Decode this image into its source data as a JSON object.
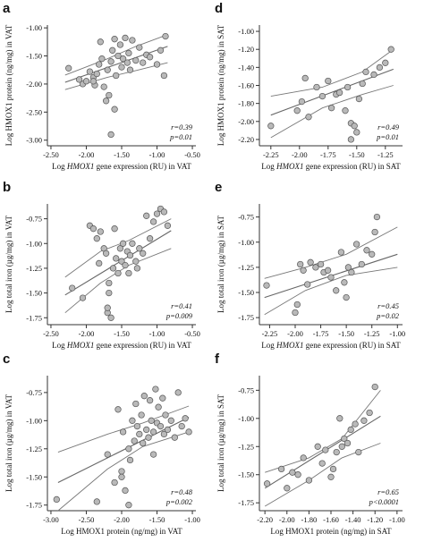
{
  "colors": {
    "point_fill": "#b9b9b9",
    "point_stroke": "#555555",
    "fit_line": "#666666",
    "ci_line": "#777777",
    "axis": "#333333",
    "text": "#111111"
  },
  "chart_data": [
    {
      "panel_letter": "a",
      "type": "scatter",
      "xlabel_pre": "Log ",
      "xlabel_em": "HMOX1",
      "xlabel_post": " gene expression (RU) in VAT",
      "ylabel": "Log HMOX1 protein (ng/mg) in VAT",
      "x_ticks": [
        -2.5,
        -2.0,
        -1.5,
        -1.0,
        -0.5
      ],
      "x_tick_labels": [
        "-2.50",
        "-2.00",
        "-1.50",
        "-1.00",
        "-0.50"
      ],
      "y_ticks": [
        -3.0,
        -2.5,
        -2.0,
        -1.5,
        -1.0
      ],
      "y_tick_labels": [
        "-3.00",
        "-2.50",
        "-2.00",
        "-1.50",
        "-1.00"
      ],
      "xlim": [
        -2.55,
        -0.45
      ],
      "ylim": [
        -3.1,
        -0.95
      ],
      "stat_r": "r=0.39",
      "stat_p": "p=0.01",
      "fit": {
        "x": [
          -2.3,
          -0.85
        ],
        "y": [
          -1.97,
          -1.33
        ]
      },
      "ci_upper": {
        "x": [
          -2.3,
          -1.7,
          -1.3,
          -0.85
        ],
        "y": [
          -1.84,
          -1.55,
          -1.33,
          -1.12
        ]
      },
      "ci_lower": {
        "x": [
          -2.3,
          -1.7,
          -1.3,
          -0.85
        ],
        "y": [
          -2.1,
          -1.88,
          -1.76,
          -1.62
        ]
      },
      "points": {
        "x": [
          -2.25,
          -2.1,
          -2.05,
          -2.0,
          -1.95,
          -1.9,
          -1.88,
          -1.85,
          -1.82,
          -1.8,
          -1.78,
          -1.75,
          -1.7,
          -1.68,
          -1.65,
          -1.63,
          -1.6,
          -1.6,
          -1.58,
          -1.55,
          -1.52,
          -1.5,
          -1.48,
          -1.45,
          -1.42,
          -1.4,
          -1.38,
          -1.35,
          -1.3,
          -1.25,
          -1.2,
          -1.15,
          -1.1,
          -1.0,
          -0.95,
          -0.9,
          -0.88,
          -1.65,
          -1.72,
          -1.9
        ],
        "y": [
          -1.72,
          -1.92,
          -2.0,
          -1.95,
          -1.78,
          -1.88,
          -2.02,
          -1.82,
          -1.65,
          -1.25,
          -1.55,
          -2.05,
          -1.75,
          -2.2,
          -1.6,
          -1.4,
          -1.2,
          -2.45,
          -1.85,
          -1.5,
          -1.3,
          -1.7,
          -1.55,
          -1.18,
          -1.62,
          -1.45,
          -1.75,
          -1.22,
          -1.58,
          -1.35,
          -1.62,
          -1.48,
          -1.52,
          -1.65,
          -1.4,
          -1.85,
          -1.15,
          -2.9,
          -2.3,
          -1.95
        ]
      }
    },
    {
      "panel_letter": "b",
      "type": "scatter",
      "xlabel_pre": "Log ",
      "xlabel_em": "HMOX1",
      "xlabel_post": " gene expression (RU) in VAT",
      "ylabel": "Log total iron (µg/mg) in VAT",
      "x_ticks": [
        -2.5,
        -2.0,
        -1.5,
        -1.0,
        -0.5
      ],
      "x_tick_labels": [
        "-2.50",
        "-2.00",
        "-1.50",
        "-1.00",
        "-0.50"
      ],
      "y_ticks": [
        -1.75,
        -1.5,
        -1.25,
        -1.0,
        -0.75
      ],
      "y_tick_labels": [
        "-1.75",
        "-1.50",
        "-1.25",
        "-1.00",
        "-0.75"
      ],
      "xlim": [
        -2.55,
        -0.45
      ],
      "ylim": [
        -1.82,
        -0.6
      ],
      "stat_r": "r=0.41",
      "stat_p": "p=0.009",
      "fit": {
        "x": [
          -2.3,
          -0.8
        ],
        "y": [
          -1.52,
          -0.87
        ]
      },
      "ci_upper": {
        "x": [
          -2.3,
          -1.8,
          -1.4,
          -0.8
        ],
        "y": [
          -1.34,
          -1.08,
          -0.97,
          -0.75
        ]
      },
      "ci_lower": {
        "x": [
          -2.3,
          -1.8,
          -1.4,
          -0.8
        ],
        "y": [
          -1.7,
          -1.4,
          -1.22,
          -1.05
        ]
      },
      "points": {
        "x": [
          -2.2,
          -2.05,
          -1.95,
          -1.9,
          -1.85,
          -1.82,
          -1.8,
          -1.75,
          -1.72,
          -1.7,
          -1.68,
          -1.65,
          -1.62,
          -1.6,
          -1.58,
          -1.55,
          -1.52,
          -1.5,
          -1.48,
          -1.45,
          -1.42,
          -1.4,
          -1.38,
          -1.35,
          -1.3,
          -1.28,
          -1.25,
          -1.2,
          -1.15,
          -1.1,
          -1.05,
          -1.0,
          -0.95,
          -0.9,
          -0.85,
          -1.7,
          -1.68
        ],
        "y": [
          -1.45,
          -1.55,
          -0.82,
          -0.85,
          -0.95,
          -1.2,
          -0.88,
          -1.05,
          -1.1,
          -1.7,
          -1.4,
          -1.75,
          -1.25,
          -0.85,
          -1.15,
          -1.3,
          -1.05,
          -1.18,
          -1.0,
          -1.22,
          -1.08,
          -1.3,
          -1.12,
          -1.0,
          -1.18,
          -1.25,
          -1.05,
          -1.1,
          -0.72,
          -0.95,
          -0.78,
          -0.7,
          -0.65,
          -0.68,
          -0.82,
          -1.65,
          -1.5
        ]
      }
    },
    {
      "panel_letter": "c",
      "type": "scatter",
      "xlabel_pre": "Log HMOX1 protein (ng/mg) in VAT",
      "xlabel_em": "",
      "xlabel_post": "",
      "ylabel": "Log total iron (µg/mg) in VAT",
      "x_ticks": [
        -3.0,
        -2.5,
        -2.0,
        -1.5,
        -1.0
      ],
      "x_tick_labels": [
        "-3.00",
        "-2.50",
        "-2.00",
        "-1.50",
        "-1.00"
      ],
      "y_ticks": [
        -1.75,
        -1.5,
        -1.25,
        -1.0,
        -0.75
      ],
      "y_tick_labels": [
        "-1.75",
        "-1.50",
        "-1.25",
        "-1.00",
        "-0.75"
      ],
      "xlim": [
        -3.05,
        -0.95
      ],
      "ylim": [
        -1.8,
        -0.6
      ],
      "stat_r": "r=0.48",
      "stat_p": "p=0.002",
      "fit": {
        "x": [
          -2.9,
          -1.05
        ],
        "y": [
          -1.55,
          -0.97
        ]
      },
      "ci_upper": {
        "x": [
          -2.9,
          -2.2,
          -1.7,
          -1.05
        ],
        "y": [
          -1.28,
          -1.12,
          -1.02,
          -0.87
        ]
      },
      "ci_lower": {
        "x": [
          -2.9,
          -2.2,
          -1.7,
          -1.05
        ],
        "y": [
          -1.8,
          -1.43,
          -1.23,
          -1.1
        ]
      },
      "points": {
        "x": [
          -2.92,
          -2.35,
          -2.2,
          -2.1,
          -2.05,
          -2.0,
          -1.98,
          -1.95,
          -1.9,
          -1.88,
          -1.85,
          -1.82,
          -1.8,
          -1.78,
          -1.75,
          -1.72,
          -1.7,
          -1.68,
          -1.65,
          -1.62,
          -1.6,
          -1.58,
          -1.55,
          -1.52,
          -1.5,
          -1.48,
          -1.45,
          -1.42,
          -1.4,
          -1.38,
          -1.35,
          -1.3,
          -1.25,
          -1.2,
          -1.15,
          -1.1,
          -1.05,
          -1.55,
          -1.9,
          -2.0
        ],
        "y": [
          -1.7,
          -1.72,
          -1.3,
          -1.55,
          -0.9,
          -1.45,
          -1.1,
          -1.62,
          -1.25,
          -1.35,
          -1.0,
          -1.18,
          -0.85,
          -1.05,
          -1.12,
          -0.95,
          -1.2,
          -0.78,
          -1.08,
          -1.15,
          -0.82,
          -1.0,
          -1.1,
          -0.72,
          -1.02,
          -0.88,
          -1.05,
          -0.8,
          -1.12,
          -0.95,
          -1.08,
          -1.0,
          -1.15,
          -0.75,
          -1.05,
          -0.98,
          -1.1,
          -1.3,
          -1.75,
          -1.5
        ]
      }
    },
    {
      "panel_letter": "d",
      "type": "scatter",
      "xlabel_pre": "Log ",
      "xlabel_em": "HMOX1",
      "xlabel_post": " gene expression (RU) in SAT",
      "ylabel": "Log HMOX1 protein (ng/mg) in SAT",
      "x_ticks": [
        -2.25,
        -2.0,
        -1.75,
        -1.5,
        -1.25
      ],
      "x_tick_labels": [
        "-2.25",
        "-2.00",
        "-1.75",
        "-1.50",
        "-1.25"
      ],
      "y_ticks": [
        -2.2,
        -2.0,
        -1.8,
        -1.6,
        -1.4,
        -1.2,
        -1.0
      ],
      "y_tick_labels": [
        "-2.20",
        "-2.00",
        "-1.80",
        "-1.60",
        "-1.40",
        "-1.20",
        "-1.00"
      ],
      "xlim": [
        -2.35,
        -1.1
      ],
      "ylim": [
        -2.27,
        -0.93
      ],
      "stat_r": "r=0.49",
      "stat_p": "p=0.01",
      "fit": {
        "x": [
          -2.25,
          -1.18
        ],
        "y": [
          -1.93,
          -1.42
        ]
      },
      "ci_upper": {
        "x": [
          -2.25,
          -1.8,
          -1.45,
          -1.18
        ],
        "y": [
          -1.72,
          -1.62,
          -1.45,
          -1.2
        ]
      },
      "ci_lower": {
        "x": [
          -2.25,
          -1.8,
          -1.45,
          -1.18
        ],
        "y": [
          -2.18,
          -1.85,
          -1.7,
          -1.6
        ]
      },
      "points": {
        "x": [
          -2.25,
          -2.02,
          -1.98,
          -1.95,
          -1.92,
          -1.85,
          -1.8,
          -1.75,
          -1.72,
          -1.68,
          -1.65,
          -1.6,
          -1.58,
          -1.55,
          -1.52,
          -1.5,
          -1.48,
          -1.45,
          -1.42,
          -1.35,
          -1.3,
          -1.25,
          -1.2,
          -1.55
        ],
        "y": [
          -2.05,
          -1.88,
          -1.78,
          -1.52,
          -1.95,
          -1.62,
          -1.72,
          -1.55,
          -1.85,
          -1.7,
          -1.68,
          -1.88,
          -1.62,
          -2.02,
          -2.05,
          -2.12,
          -1.75,
          -1.58,
          -1.45,
          -1.48,
          -1.4,
          -1.35,
          -1.2,
          -2.2
        ]
      }
    },
    {
      "panel_letter": "e",
      "type": "scatter",
      "xlabel_pre": "Log ",
      "xlabel_em": "HMOX1",
      "xlabel_post": " gene expression (RU) in SAT",
      "ylabel": "Log total iron (µg/mg) in SAT",
      "x_ticks": [
        -2.25,
        -2.0,
        -1.75,
        -1.5,
        -1.25,
        -1.0
      ],
      "x_tick_labels": [
        "-2.25",
        "-2.00",
        "-1.75",
        "-1.50",
        "-1.25",
        "-1.00"
      ],
      "y_ticks": [
        -1.75,
        -1.5,
        -1.25,
        -1.0,
        -0.75
      ],
      "y_tick_labels": [
        "-1.75",
        "-1.50",
        "-1.25",
        "-1.00",
        "-0.75"
      ],
      "xlim": [
        -2.35,
        -0.95
      ],
      "ylim": [
        -1.82,
        -0.62
      ],
      "stat_r": "r=0.45",
      "stat_p": "p=0.02",
      "fit": {
        "x": [
          -2.3,
          -1.0
        ],
        "y": [
          -1.55,
          -1.12
        ]
      },
      "ci_upper": {
        "x": [
          -2.3,
          -1.9,
          -1.5,
          -1.0
        ],
        "y": [
          -1.36,
          -1.25,
          -1.12,
          -0.85
        ]
      },
      "ci_lower": {
        "x": [
          -2.3,
          -1.9,
          -1.5,
          -1.0
        ],
        "y": [
          -1.72,
          -1.48,
          -1.33,
          -1.25
        ]
      },
      "points": {
        "x": [
          -2.28,
          -2.0,
          -1.98,
          -1.95,
          -1.92,
          -1.88,
          -1.85,
          -1.8,
          -1.75,
          -1.72,
          -1.68,
          -1.65,
          -1.6,
          -1.55,
          -1.52,
          -1.5,
          -1.48,
          -1.45,
          -1.4,
          -1.35,
          -1.3,
          -1.25,
          -1.22,
          -1.2
        ],
        "y": [
          -1.43,
          -1.7,
          -1.62,
          -1.22,
          -1.28,
          -1.42,
          -1.2,
          -1.25,
          -1.22,
          -1.3,
          -1.28,
          -1.35,
          -1.48,
          -1.1,
          -1.4,
          -1.55,
          -1.25,
          -1.3,
          -1.02,
          -1.22,
          -1.08,
          -1.12,
          -0.9,
          -0.75
        ]
      }
    },
    {
      "panel_letter": "f",
      "type": "scatter",
      "xlabel_pre": "Log HMOX1 protein (ng/mg) in SAT",
      "xlabel_em": "",
      "xlabel_post": "",
      "ylabel": "Log total iron (µg/mg) in SAT",
      "x_ticks": [
        -2.2,
        -2.0,
        -1.8,
        -1.6,
        -1.4,
        -1.2,
        -1.0
      ],
      "x_tick_labels": [
        "-2.20",
        "-2.00",
        "-1.80",
        "-1.60",
        "-1.40",
        "-1.20",
        "-1.00"
      ],
      "y_ticks": [
        -1.75,
        -1.5,
        -1.25,
        -1.0,
        -0.75
      ],
      "y_tick_labels": [
        "-1.75",
        "-1.50",
        "-1.25",
        "-1.00",
        "-0.75"
      ],
      "xlim": [
        -2.25,
        -0.95
      ],
      "ylim": [
        -1.82,
        -0.62
      ],
      "stat_r": "r=0.65",
      "stat_p": "p<0.0001",
      "fit": {
        "x": [
          -2.2,
          -1.15
        ],
        "y": [
          -1.62,
          -0.98
        ]
      },
      "ci_upper": {
        "x": [
          -2.2,
          -1.8,
          -1.5,
          -1.15
        ],
        "y": [
          -1.48,
          -1.35,
          -1.18,
          -0.75
        ]
      },
      "ci_lower": {
        "x": [
          -2.2,
          -1.8,
          -1.5,
          -1.15
        ],
        "y": [
          -1.78,
          -1.55,
          -1.35,
          -1.22
        ]
      },
      "points": {
        "x": [
          -2.18,
          -2.05,
          -2.0,
          -1.95,
          -1.9,
          -1.85,
          -1.8,
          -1.72,
          -1.68,
          -1.65,
          -1.6,
          -1.58,
          -1.55,
          -1.52,
          -1.5,
          -1.48,
          -1.45,
          -1.42,
          -1.38,
          -1.35,
          -1.3,
          -1.25,
          -1.2
        ],
        "y": [
          -1.58,
          -1.45,
          -1.62,
          -1.48,
          -1.5,
          -1.35,
          -1.55,
          -1.25,
          -1.4,
          -1.28,
          -1.52,
          -1.45,
          -1.3,
          -1.0,
          -1.25,
          -1.18,
          -1.22,
          -1.1,
          -1.05,
          -1.3,
          -1.02,
          -0.95,
          -0.72
        ]
      }
    }
  ]
}
